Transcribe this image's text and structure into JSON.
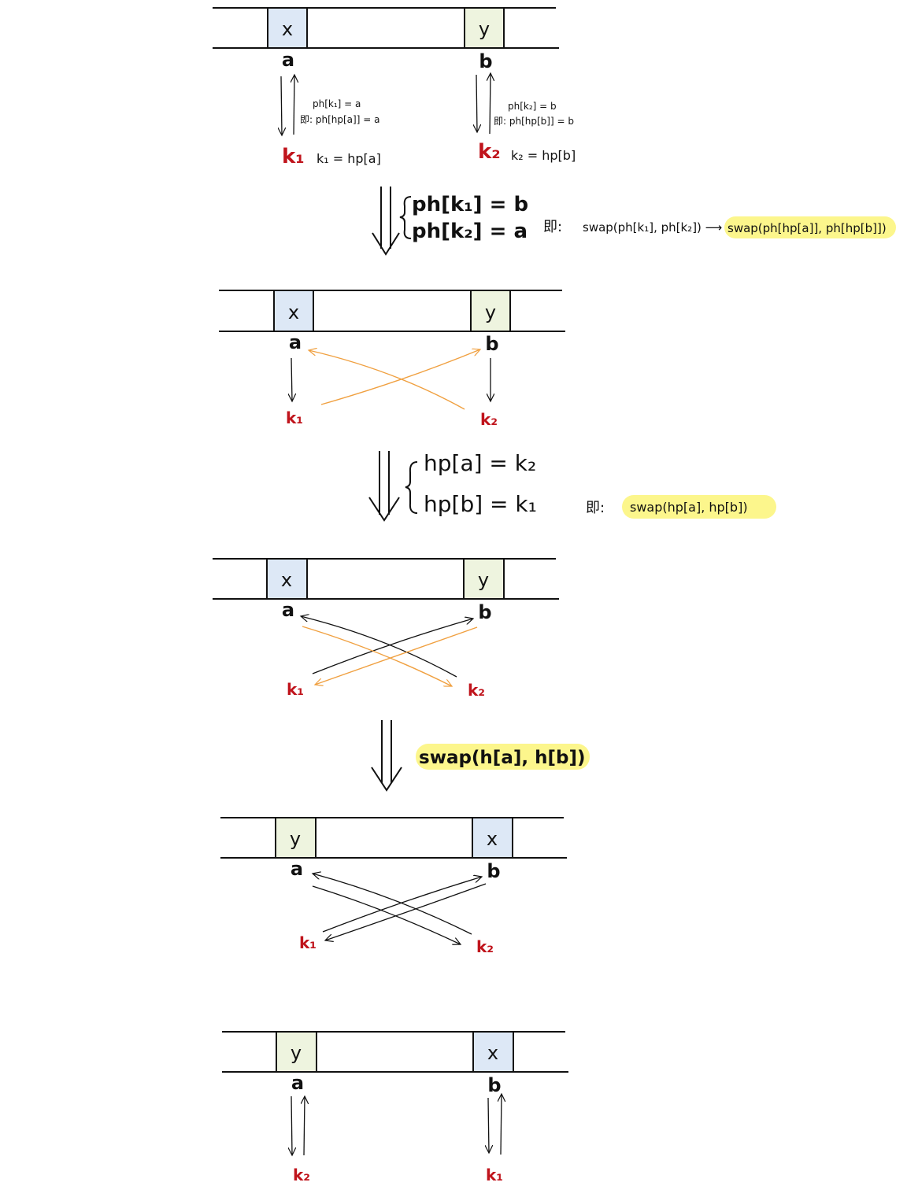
{
  "colors": {
    "box_x": "#dde8f6",
    "box_y": "#eef4df",
    "red_label": "#c0141c",
    "orange_arrow": "#f0a040",
    "highlight": "#fcf68c",
    "ink": "#111111"
  },
  "step1": {
    "cell_left": "x",
    "cell_right": "y",
    "pos_left": "a",
    "pos_right": "b",
    "k_left": "k₁",
    "k_right": "k₂",
    "note_left_1": "ph[k₁] = a",
    "note_left_2": "即: ph[hp[a]] = a",
    "note_right_1": "ph[k₂] = b",
    "note_right_2": "即: ph[hp[b]] = b",
    "eq_left": "k₁ = hp[a]",
    "eq_right": "k₂ = hp[b]"
  },
  "transition1": {
    "line1": "ph[k₁] = b",
    "line2": "ph[k₂] = a",
    "note_prefix": "即:",
    "note_plain": "swap(ph[k₁], ph[k₂]) ⟶",
    "note_highlight": "swap(ph[hp[a]], ph[hp[b]])"
  },
  "step2": {
    "cell_left": "x",
    "cell_right": "y",
    "pos_left": "a",
    "pos_right": "b",
    "k_left": "k₁",
    "k_right": "k₂"
  },
  "transition2": {
    "line1": "hp[a] = k₂",
    "line2": "hp[b] = k₁",
    "note_prefix": "即:",
    "note_highlight": "swap(hp[a], hp[b])"
  },
  "step3": {
    "cell_left": "x",
    "cell_right": "y",
    "pos_left": "a",
    "pos_right": "b",
    "k_left": "k₁",
    "k_right": "k₂"
  },
  "transition3": {
    "note_highlight": "swap(h[a], h[b])"
  },
  "step4": {
    "cell_left": "y",
    "cell_right": "x",
    "pos_left": "a",
    "pos_right": "b",
    "k_left": "k₁",
    "k_right": "k₂"
  },
  "step5": {
    "cell_left": "y",
    "cell_right": "x",
    "pos_left": "a",
    "pos_right": "b",
    "k_left": "k₂",
    "k_right": "k₁"
  }
}
